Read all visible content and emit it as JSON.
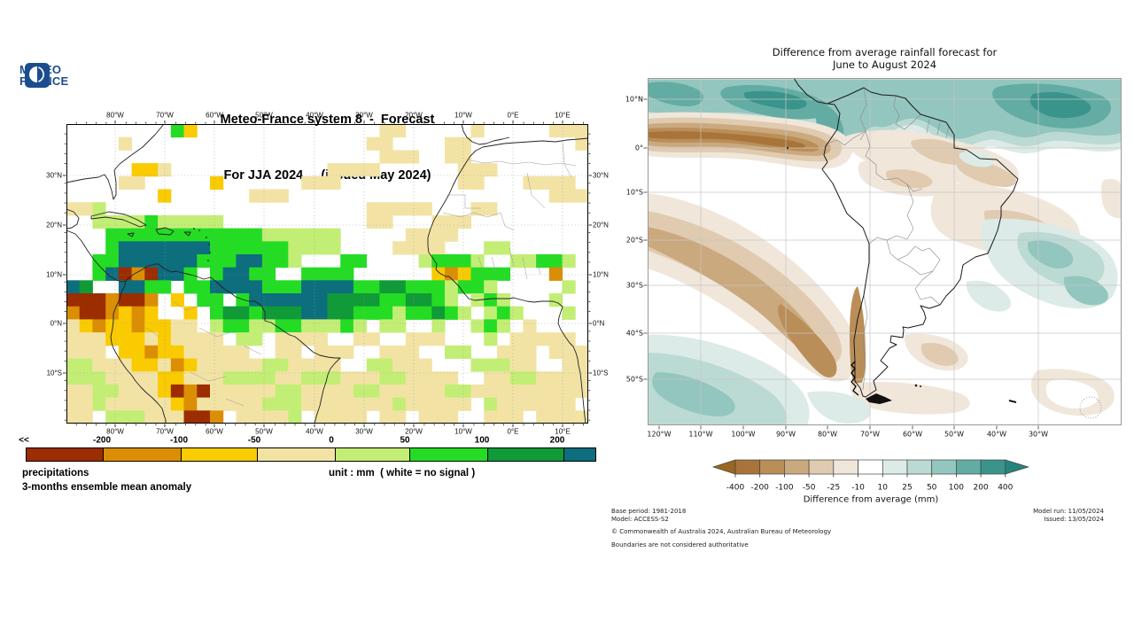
{
  "left_panel": {
    "logo_line1": "METEO",
    "logo_line2": "FRANCE",
    "logo_color": "#1B4D8E",
    "title_line1": "Meteo-France system 8  -  Forecast",
    "title_line2": "For JJA 2024     (issued May 2024)",
    "lon_labels": [
      "80°W",
      "70°W",
      "60°W",
      "50°W",
      "40°W",
      "30°W",
      "20°W",
      "10°W",
      "0°E",
      "10°E"
    ],
    "lat_labels": [
      "30°N",
      "20°N",
      "10°N",
      "0°N",
      "10°S"
    ],
    "colorbar": {
      "left_arrow": "<<",
      "labels": [
        "-200",
        "-100",
        "-50",
        "0",
        "50",
        "100",
        "200"
      ],
      "segment_colors": [
        "#9B2D00",
        "#DB8E04",
        "#F9CB00",
        "#F2E3A5",
        "#C3EE75",
        "#24DC24",
        "#109A38",
        "#0D6E7D"
      ]
    },
    "caption_line1": "precipitations",
    "caption_line2": "3-months ensemble mean anomaly",
    "caption_unit": "unit : mm  ( white = no signal )",
    "map_grid": {
      "palette": {
        ".": "#FFFFFF",
        "p": "#F2E3A5",
        "g": "#F9CB00",
        "o": "#DB8E04",
        "r": "#9B2D00",
        "l": "#C3EE75",
        "G": "#24DC24",
        "F": "#109A38",
        "T": "#0D6E7D"
      },
      "rows": [
        "........Gg..............pp.....p.....ppp",
        "....p..................pp....pp........p",
        "........................ppp..pp.........",
        ".....ggp............pppp......ppp.......",
        "....pp.....g......ppp.........pp...pppp.",
        ".......g......ppp....................ppp",
        "ppl....................ppppp...pp.......",
        "..llllGlllll...........pp...ppp.........",
        "...GGGGGGGGGGGGllllll.....pppp..........",
        "...GTTTTTTTGGGGGGllll....pppp...ll......",
        "..GGTTTTTTGGGTTGGl...GG....lGGGl..llGGl.",
        "..GTrorTTG.GTTGG..GGGG......gogGGG...o..",
        "TF..TTGG.GGTTTTGGGTTTTGGFFGGGlGGl.....l.",
        "rrrorro.g.GG.GTTTTTTFFFFGGFFGl.lGl...l..",
        "orrogog..g.GFFGFFFTTFFGGGlGGFGl.lGl...l.",
        "pgoggoggpp.lGGllGGlllGl.ll..l..lGl.p....",
        "pppgggpgpppp.ll.pppp..pp..ppp...l.ppppp.",
        "ppp.ggoggppppp..pp.ppp..ppp..ll..ppp.ppp",
        "llpppggpogpppppllpppp..llppp...lllpp..pp",
        "lllppppggpppllllpplllpppllpppp..ppllpppp",
        "ppllpppgrorpppppllppppllpppppllppppppppp",
        "pplpppppgoppppplllppppppplppppp.lpppppp.",
        "pp.lllppprro.ppppl.pppp.pp.ppp..ppp.pppp"
      ]
    }
  },
  "right_panel": {
    "title_line1": "Difference from average rainfall forecast for",
    "title_line2": "June to August 2024",
    "lat_labels": [
      "10°N",
      "0°",
      "10°S",
      "20°S",
      "30°S",
      "40°S",
      "50°S"
    ],
    "lon_labels": [
      "120°W",
      "110°W",
      "100°W",
      "90°W",
      "80°W",
      "70°W",
      "60°W",
      "50°W",
      "40°W",
      "30°W"
    ],
    "colorbar": {
      "labels": [
        "-400",
        "-200",
        "-100",
        "-50",
        "-25",
        "-10",
        "10",
        "25",
        "50",
        "100",
        "200",
        "400"
      ],
      "segment_colors": [
        "#A8743A",
        "#BA8E58",
        "#CBA97E",
        "#E0CBB0",
        "#F0E6DA",
        "#FFFFFF",
        "#DCEBE7",
        "#BCDAD4",
        "#93C6BE",
        "#63ACA3",
        "#3A948B"
      ],
      "left_arrow_color": "#9A6620",
      "right_arrow_color": "#26847C",
      "caption": "Difference from average (mm)"
    },
    "footer_left": [
      "Base period: 1981-2018",
      "Model: ACCESS-S2",
      "© Commonwealth of Australia 2024, Australian Bureau of Meteorology",
      "Boundaries are not considered authoritative"
    ],
    "footer_right": [
      "Model run: 11/05/2024",
      "Issued: 13/05/2024"
    ]
  },
  "chart_data": [
    {
      "type": "heatmap",
      "title": "Meteo-France system 8 - Forecast For JJA 2024 (issued May 2024)",
      "variable": "precipitations 3-months ensemble mean anomaly",
      "unit": "mm",
      "note": "white = no signal",
      "scale_breakpoints": [
        -200,
        -100,
        -50,
        0,
        50,
        100,
        200
      ],
      "x_ticks": [
        "80°W",
        "70°W",
        "60°W",
        "50°W",
        "40°W",
        "30°W",
        "20°W",
        "10°W",
        "0°E",
        "10°E"
      ],
      "y_ticks": [
        "30°N",
        "20°N",
        "10°N",
        "0°N",
        "10°S"
      ],
      "legend_position": "bottom"
    },
    {
      "type": "heatmap",
      "title": "Difference from average rainfall forecast for June to August 2024",
      "unit": "mm",
      "scale_breakpoints": [
        -400,
        -200,
        -100,
        -50,
        -25,
        -10,
        10,
        25,
        50,
        100,
        200,
        400
      ],
      "x_ticks": [
        "120°W",
        "110°W",
        "100°W",
        "90°W",
        "80°W",
        "70°W",
        "60°W",
        "50°W",
        "40°W",
        "30°W"
      ],
      "y_ticks": [
        "10°N",
        "0°",
        "10°S",
        "20°S",
        "30°S",
        "40°S",
        "50°S"
      ],
      "base_period": "1981-2018",
      "model": "ACCESS-S2",
      "model_run": "11/05/2024",
      "issued": "13/05/2024",
      "legend_position": "bottom"
    }
  ]
}
